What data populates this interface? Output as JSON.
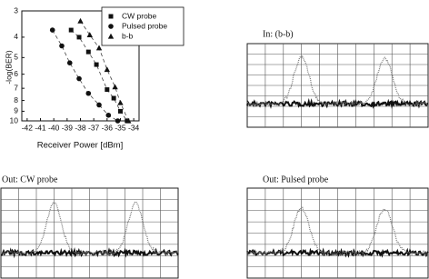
{
  "chart_data": {
    "type": "scatter",
    "x_label": "Receiver Power [dBm]",
    "y_label": "-log(BER)",
    "xlim": [
      -42.4,
      -33.6
    ],
    "ylim": [
      3,
      10
    ],
    "y_log": true,
    "y_inverted": true,
    "xticks": [
      -42,
      -41,
      -40,
      -39,
      -38,
      -37,
      -36,
      -35,
      -34
    ],
    "yticks": [
      3,
      4,
      5,
      6,
      7,
      8,
      9,
      10
    ],
    "legend": "top-right",
    "series": [
      {
        "name": "CW probe",
        "marker": "square",
        "color": "#111111",
        "x": [
          -38.7,
          -38.1,
          -37.4,
          -36.8,
          -36.0,
          -35.5,
          -35.0,
          -34.5
        ],
        "values": [
          3.7,
          4.0,
          4.7,
          5.4,
          7.1,
          7.8,
          9.0,
          10
        ]
      },
      {
        "name": "Pulsed probe",
        "marker": "circle",
        "color": "#111111",
        "x": [
          -40.1,
          -39.4,
          -38.8,
          -38.1,
          -37.4,
          -36.6,
          -35.9,
          -35.2
        ],
        "values": [
          3.7,
          4.4,
          5.3,
          6.3,
          7.4,
          8.4,
          9.4,
          10
        ]
      },
      {
        "name": "b-b",
        "marker": "triangle",
        "color": "#111111",
        "x": [
          -38.0,
          -37.3,
          -36.6,
          -36.0,
          -35.4,
          -35.0,
          -34.4
        ],
        "values": [
          3.35,
          3.9,
          4.5,
          5.7,
          6.9,
          8.2,
          10
        ]
      }
    ]
  },
  "panels": [
    {
      "title": "In: (b-b)"
    },
    {
      "title": "Out: CW probe"
    },
    {
      "title": "Out: Pulsed probe"
    }
  ]
}
